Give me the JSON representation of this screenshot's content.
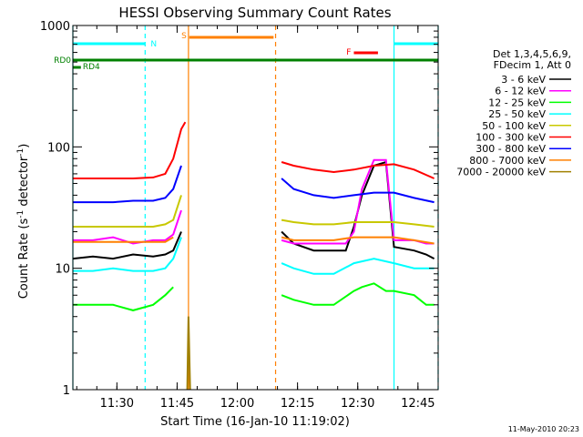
{
  "chart_data": {
    "type": "line",
    "title": "HESSI Observing Summary Count Rates",
    "xlabel": "Start Time (16-Jan-10 11:19:02)",
    "ylabel_main": "Count Rate (s",
    "ylabel_sup1": "-1",
    "ylabel_mid": " detector",
    "ylabel_sup2": "-1",
    "ylabel_end": ")",
    "yscale": "log",
    "ylim": [
      1,
      1000
    ],
    "xlim_minutes": [
      0,
      91
    ],
    "x_tick_labels": [
      "11:30",
      "11:45",
      "12:00",
      "12:15",
      "12:30",
      "12:45"
    ],
    "y_tick_labels": [
      "1",
      "10",
      "100",
      "1000"
    ],
    "timestamp": "11-May-2010 20:23",
    "legend_header": [
      "Det 1,3,4,5,6,9,",
      "FDecim 1, Att 0"
    ],
    "legend_position": "right",
    "series": [
      {
        "name": "3 - 6 keV",
        "color": "#000000",
        "segments": [
          {
            "x": [
              0,
              5,
              10,
              15,
              20,
              23,
              25,
              27
            ],
            "y": [
              12,
              12.5,
              12,
              13,
              12.5,
              13,
              14,
              20
            ]
          },
          {
            "x": [
              52,
              55,
              60,
              65,
              68,
              70,
              72,
              75,
              78,
              80,
              85,
              88,
              90
            ],
            "y": [
              20,
              16,
              14,
              14,
              14,
              22,
              40,
              70,
              75,
              15,
              14,
              13,
              12
            ]
          }
        ]
      },
      {
        "name": "6 - 12 keV",
        "color": "#ff00ff",
        "segments": [
          {
            "x": [
              0,
              5,
              10,
              15,
              20,
              23,
              25,
              27
            ],
            "y": [
              17,
              17,
              18,
              16,
              17,
              17,
              19,
              30
            ]
          },
          {
            "x": [
              52,
              55,
              60,
              65,
              68,
              70,
              72,
              75,
              78,
              80,
              85,
              88,
              90
            ],
            "y": [
              17,
              16,
              16,
              16,
              16,
              20,
              45,
              78,
              78,
              17,
              17,
              16,
              16
            ]
          }
        ]
      },
      {
        "name": "12 - 25 keV",
        "color": "#00ff00",
        "segments": [
          {
            "x": [
              0,
              5,
              10,
              15,
              20,
              23,
              25
            ],
            "y": [
              5,
              5,
              5,
              4.5,
              5,
              6,
              7
            ]
          },
          {
            "x": [
              52,
              55,
              60,
              65,
              70,
              72,
              75,
              78,
              80,
              85,
              88,
              90
            ],
            "y": [
              6,
              5.5,
              5,
              5,
              6.5,
              7,
              7.5,
              6.5,
              6.5,
              6,
              5,
              5
            ]
          }
        ]
      },
      {
        "name": "25 - 50 keV",
        "color": "#00ffff",
        "segments": [
          {
            "x": [
              0,
              5,
              10,
              15,
              20,
              23,
              25,
              27
            ],
            "y": [
              9.5,
              9.5,
              10,
              9.5,
              9.5,
              10,
              12,
              18
            ]
          },
          {
            "x": [
              52,
              55,
              60,
              65,
              70,
              75,
              80,
              85,
              90
            ],
            "y": [
              11,
              10,
              9,
              9,
              11,
              12,
              11,
              10,
              10
            ]
          }
        ]
      },
      {
        "name": "50 - 100 keV",
        "color": "#c8c800",
        "segments": [
          {
            "x": [
              0,
              5,
              10,
              15,
              20,
              23,
              25,
              27
            ],
            "y": [
              22,
              22,
              22,
              22,
              22,
              23,
              25,
              40
            ]
          },
          {
            "x": [
              52,
              55,
              60,
              65,
              70,
              75,
              80,
              85,
              90
            ],
            "y": [
              25,
              24,
              23,
              23,
              24,
              24,
              24,
              23,
              22
            ]
          }
        ]
      },
      {
        "name": "100 - 300 keV",
        "color": "#ff0000",
        "segments": [
          {
            "x": [
              0,
              5,
              10,
              15,
              20,
              23,
              25,
              27,
              28
            ],
            "y": [
              55,
              55,
              55,
              55,
              56,
              60,
              80,
              140,
              160
            ]
          },
          {
            "x": [
              52,
              55,
              60,
              65,
              70,
              75,
              80,
              85,
              90
            ],
            "y": [
              75,
              70,
              65,
              62,
              65,
              70,
              72,
              65,
              55
            ]
          }
        ]
      },
      {
        "name": "300 - 800 keV",
        "color": "#0000ff",
        "segments": [
          {
            "x": [
              0,
              5,
              10,
              15,
              20,
              23,
              25,
              27
            ],
            "y": [
              35,
              35,
              35,
              36,
              36,
              38,
              45,
              70
            ]
          },
          {
            "x": [
              52,
              55,
              60,
              65,
              70,
              75,
              80,
              85,
              90
            ],
            "y": [
              55,
              45,
              40,
              38,
              40,
              42,
              42,
              38,
              35
            ]
          }
        ]
      },
      {
        "name": "800 - 7000 keV",
        "color": "#ff8000",
        "segments": [
          {
            "x": [
              0,
              5,
              10,
              15,
              20,
              23,
              25
            ],
            "y": [
              16.5,
              16.5,
              16.5,
              16.5,
              16.5,
              16.5,
              18
            ]
          },
          {
            "x": [
              52,
              55,
              60,
              65,
              70,
              75,
              80,
              85,
              90
            ],
            "y": [
              18,
              17,
              17,
              17,
              18,
              18,
              18,
              17,
              16
            ]
          }
        ]
      },
      {
        "name": "7000 - 20000 keV",
        "color": "#a08000",
        "segments": [
          {
            "x": [
              28.5,
              28.8,
              29.2
            ],
            "y": [
              1,
              4,
              1
            ]
          }
        ]
      }
    ],
    "flag_bars": [
      {
        "label": "N",
        "color": "#00ffff",
        "segments": [
          [
            0,
            18
          ],
          [
            80,
            91
          ]
        ]
      },
      {
        "label": "S",
        "color": "#ff8000",
        "segments": [
          [
            29,
            50
          ]
        ]
      },
      {
        "label": "F",
        "color": "#ff0000",
        "segments": [
          [
            70,
            76
          ]
        ]
      },
      {
        "label": "RD0",
        "color": "#008000",
        "segments": [
          [
            0,
            91
          ]
        ]
      },
      {
        "label": "RD4",
        "color": "#008000",
        "segments": [
          [
            0,
            2
          ]
        ]
      }
    ],
    "vertical_lines": [
      {
        "x": 0,
        "color": "#00ffff",
        "style": "solid"
      },
      {
        "x": 18,
        "color": "#00ffff",
        "style": "dashed"
      },
      {
        "x": 28.8,
        "color": "#ff8000",
        "style": "solid"
      },
      {
        "x": 50.5,
        "color": "#ff8000",
        "style": "dashed"
      },
      {
        "x": 80,
        "color": "#00ffff",
        "style": "solid"
      },
      {
        "x": 91,
        "color": "#00ffff",
        "style": "dashed"
      }
    ]
  }
}
